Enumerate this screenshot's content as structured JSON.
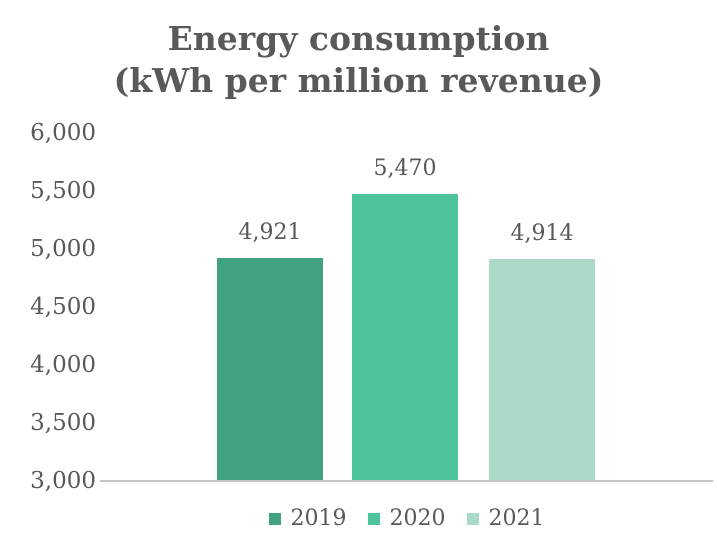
{
  "chart_data": {
    "type": "bar",
    "title_line1": "Energy consumption",
    "title_line2": "(kWh per million revenue)",
    "categories": [
      "2019",
      "2020",
      "2021"
    ],
    "values": [
      4921,
      5470,
      4914
    ],
    "value_labels": [
      "4,921",
      "5,470",
      "4,914"
    ],
    "bar_colors": [
      "#41a183",
      "#4ec49d",
      "#aad9c5"
    ],
    "y_ticks": [
      {
        "label": "6,000",
        "value": 6000
      },
      {
        "label": "5,500",
        "value": 5500
      },
      {
        "label": "5,000",
        "value": 5000
      },
      {
        "label": "4,500",
        "value": 4500
      },
      {
        "label": "4,000",
        "value": 4000
      },
      {
        "label": "3,500",
        "value": 3500
      },
      {
        "label": "3,000",
        "value": 3000
      }
    ],
    "ylim": [
      3000,
      6000
    ],
    "xlabel": "",
    "ylabel": "",
    "grid": false,
    "legend_position": "bottom",
    "legend_entries": [
      "2019",
      "2020",
      "2021"
    ]
  },
  "style": {
    "text_color": "#595959",
    "axis_line_color": "#c3c3c3",
    "background_color": "#ffffff"
  }
}
